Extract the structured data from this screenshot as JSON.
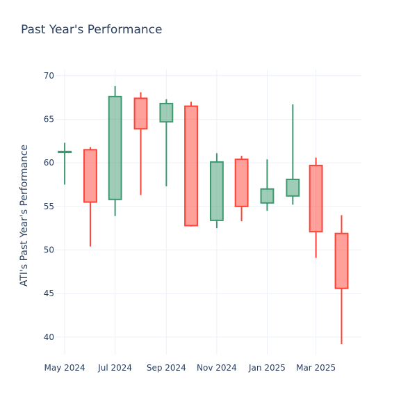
{
  "chart_data": {
    "type": "candlestick",
    "title": "Past Year's Performance",
    "ylabel": "ATI's Past Year's Performance",
    "xlabel": "",
    "ylim": [
      38.0,
      70.7
    ],
    "yticks": [
      40,
      45,
      50,
      55,
      60,
      65,
      70
    ],
    "xticks": [
      {
        "label": "May 2024",
        "date": "2024-05-01"
      },
      {
        "label": "Jul 2024",
        "date": "2024-07-01"
      },
      {
        "label": "Sep 2024",
        "date": "2024-09-01"
      },
      {
        "label": "Nov 2024",
        "date": "2024-11-01"
      },
      {
        "label": "Jan 2025",
        "date": "2025-01-01"
      },
      {
        "label": "Mar 2025",
        "date": "2025-03-01"
      }
    ],
    "xrange": [
      "2024-04-20",
      "2025-04-25"
    ],
    "grid": true,
    "increasing_color": "#3d9970",
    "decreasing_color": "#ff4136",
    "candles": [
      {
        "date": "2024-05-01",
        "open": 61.2,
        "high": 62.3,
        "low": 57.5,
        "close": 61.3
      },
      {
        "date": "2024-06-01",
        "open": 61.5,
        "high": 61.8,
        "low": 50.4,
        "close": 55.5
      },
      {
        "date": "2024-07-01",
        "open": 55.8,
        "high": 68.8,
        "low": 53.9,
        "close": 67.6
      },
      {
        "date": "2024-08-01",
        "open": 67.4,
        "high": 68.1,
        "low": 56.3,
        "close": 63.9
      },
      {
        "date": "2024-09-01",
        "open": 64.7,
        "high": 67.3,
        "low": 57.3,
        "close": 66.8
      },
      {
        "date": "2024-10-01",
        "open": 66.5,
        "high": 67.0,
        "low": 52.7,
        "close": 52.8
      },
      {
        "date": "2024-11-01",
        "open": 53.4,
        "high": 61.1,
        "low": 52.5,
        "close": 60.1
      },
      {
        "date": "2024-12-01",
        "open": 60.4,
        "high": 60.8,
        "low": 53.3,
        "close": 55.0
      },
      {
        "date": "2025-01-01",
        "open": 55.4,
        "high": 60.4,
        "low": 54.5,
        "close": 57.0
      },
      {
        "date": "2025-02-01",
        "open": 56.2,
        "high": 66.7,
        "low": 55.2,
        "close": 58.1
      },
      {
        "date": "2025-03-01",
        "open": 59.7,
        "high": 60.6,
        "low": 49.1,
        "close": 52.1
      },
      {
        "date": "2025-04-01",
        "open": 51.9,
        "high": 54.0,
        "low": 39.2,
        "close": 45.6
      }
    ]
  }
}
